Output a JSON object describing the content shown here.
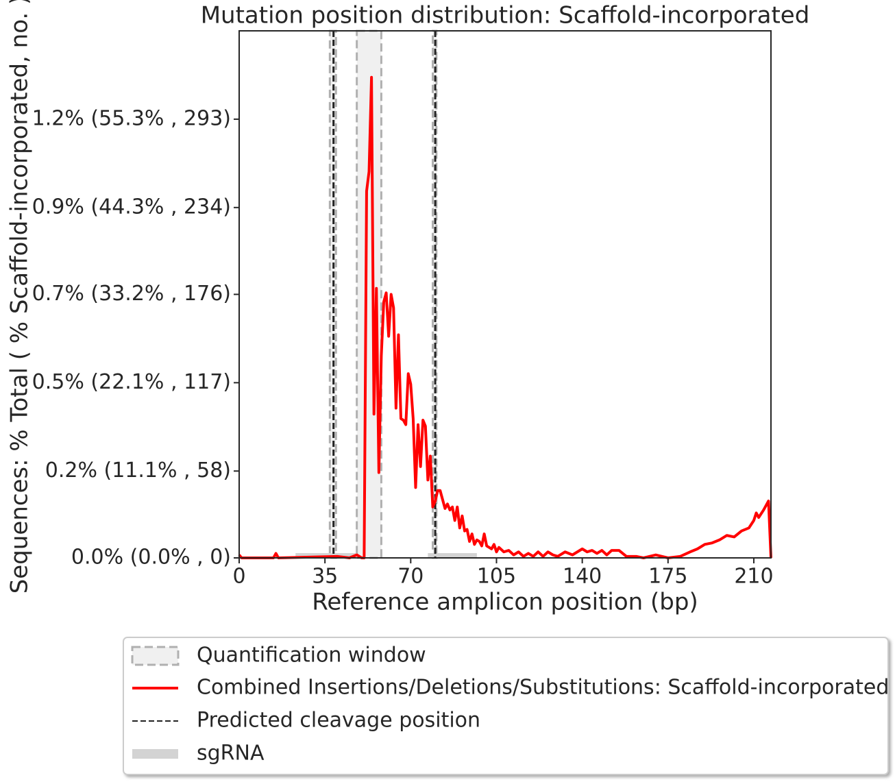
{
  "chart_data": {
    "type": "line",
    "title": "Mutation position distribution: Scaffold-incorporated",
    "x_label": "Reference amplicon position (bp)",
    "y_label": "Sequences: % Total ( % Scaffold-incorporated, no. )",
    "x": [
      0,
      1,
      14,
      15,
      16,
      40,
      45,
      48,
      50,
      51,
      52,
      53,
      54,
      55,
      56,
      57,
      58,
      59,
      60,
      61,
      62,
      63,
      64,
      65,
      66,
      67,
      68,
      69,
      70,
      71,
      72,
      73,
      74,
      75,
      76,
      77,
      78,
      79,
      80,
      81,
      82,
      83,
      84,
      85,
      86,
      87,
      88,
      89,
      90,
      91,
      92,
      93,
      94,
      95,
      96,
      97,
      98,
      99,
      100,
      101,
      102,
      103,
      104,
      105,
      106,
      108,
      110,
      112,
      114,
      116,
      118,
      120,
      122,
      124,
      126,
      128,
      130,
      133,
      136,
      140,
      142,
      144,
      146,
      148,
      150,
      152,
      155,
      158,
      162,
      165,
      170,
      175,
      180,
      184,
      187,
      190,
      193,
      196,
      199,
      202,
      205,
      208,
      210,
      211,
      212,
      214,
      216,
      217
    ],
    "series": [
      {
        "name": "Combined Insertions/Deletions/Substitutions: Scaffold-incorporated",
        "color": "#ff0000",
        "values": [
          2,
          0,
          0,
          3,
          0,
          1,
          0,
          2,
          0,
          0,
          245,
          258,
          321,
          96,
          180,
          57,
          135,
          171,
          177,
          148,
          176,
          167,
          100,
          149,
          93,
          92,
          89,
          123,
          116,
          93,
          47,
          89,
          61,
          92,
          88,
          52,
          68,
          34,
          38,
          45,
          45,
          39,
          33,
          36,
          32,
          34,
          25,
          34,
          20,
          28,
          18,
          19,
          11,
          16,
          9,
          12,
          11,
          8,
          16,
          8,
          7,
          6,
          9,
          4,
          7,
          4,
          5,
          2,
          4,
          1,
          3,
          1,
          4,
          1,
          4,
          2,
          1,
          4,
          2,
          6,
          4,
          5,
          3,
          5,
          2,
          5,
          5,
          1,
          1,
          0,
          2,
          0,
          1,
          4,
          6,
          9,
          10,
          12,
          15,
          14,
          18,
          20,
          25,
          30,
          27,
          32,
          38,
          0
        ]
      }
    ],
    "quantification_window": {
      "name": "Quantification window",
      "color": "#f0f0f0",
      "edge_color": "#b0b0b0",
      "ranges": [
        [
          37,
          39.5
        ],
        [
          48,
          58
        ],
        [
          79,
          80.5
        ]
      ]
    },
    "cleavage": {
      "name": "Predicted cleavage position",
      "color": "#222222",
      "positions": [
        38.5,
        80
      ]
    },
    "sgrna": {
      "name": "sgRNA",
      "color": "#d3d3d3",
      "ranges": [
        [
          23,
          48
        ],
        [
          77,
          97
        ]
      ]
    },
    "xlim": [
      0,
      217
    ],
    "ylim": [
      0,
      352
    ],
    "xticks": [
      0,
      35,
      70,
      105,
      140,
      175,
      210
    ],
    "yticks": [
      {
        "value": 0,
        "label": "0.0% (0.0% , 0)"
      },
      {
        "value": 58,
        "label": "0.2% (11.1% , 58)"
      },
      {
        "value": 117,
        "label": "0.5% (22.1% , 117)"
      },
      {
        "value": 176,
        "label": "0.7% (33.2% , 176)"
      },
      {
        "value": 234,
        "label": "0.9% (44.3% , 234)"
      },
      {
        "value": 293,
        "label": "1.2% (55.3% , 293)"
      }
    ],
    "grid": false,
    "legend": "lower center"
  }
}
